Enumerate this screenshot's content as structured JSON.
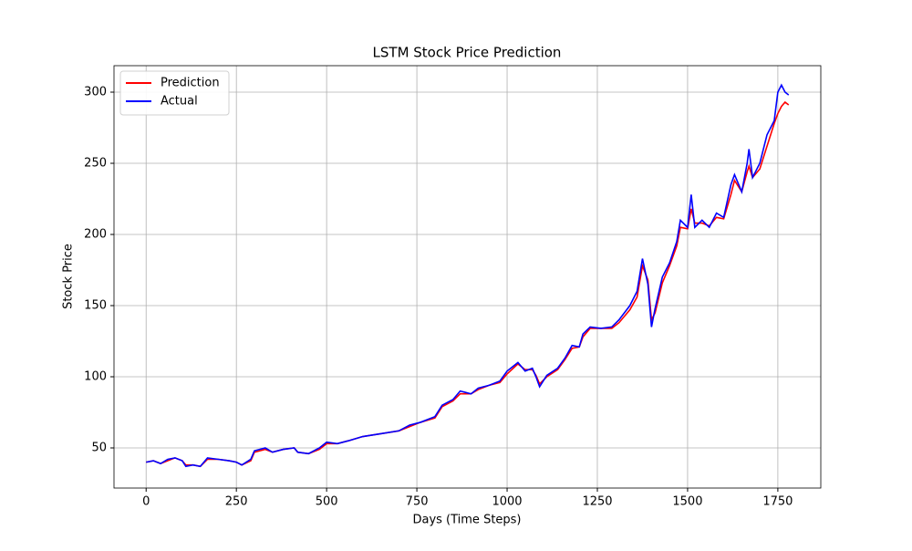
{
  "chart_data": {
    "type": "line",
    "title": "LSTM Stock Price Prediction",
    "x_label": "Days (Time Steps)",
    "y_label": "Stock Price",
    "x": [
      0,
      20,
      40,
      60,
      80,
      100,
      110,
      130,
      150,
      170,
      200,
      230,
      250,
      265,
      290,
      300,
      330,
      350,
      380,
      410,
      420,
      450,
      480,
      500,
      530,
      560,
      600,
      650,
      700,
      730,
      760,
      800,
      820,
      850,
      870,
      900,
      920,
      950,
      980,
      1000,
      1030,
      1050,
      1070,
      1080,
      1090,
      1110,
      1140,
      1160,
      1180,
      1200,
      1210,
      1230,
      1260,
      1290,
      1310,
      1340,
      1360,
      1375,
      1390,
      1400,
      1410,
      1430,
      1450,
      1470,
      1480,
      1500,
      1510,
      1520,
      1540,
      1560,
      1580,
      1600,
      1620,
      1630,
      1650,
      1665,
      1670,
      1680,
      1700,
      1720,
      1740,
      1750,
      1760,
      1770,
      1780
    ],
    "series": [
      {
        "name": "Prediction",
        "color": "#ff0000",
        "values": [
          40,
          41,
          39,
          41,
          43,
          41,
          38,
          38,
          37,
          42,
          42,
          41,
          40,
          38,
          41,
          47,
          49,
          47,
          49,
          50,
          47,
          46,
          49,
          53,
          53,
          55,
          58,
          60,
          62,
          65,
          68,
          71,
          79,
          83,
          88,
          88,
          91,
          94,
          96,
          102,
          109,
          105,
          105,
          101,
          95,
          100,
          105,
          112,
          120,
          121,
          128,
          134,
          134,
          134,
          138,
          147,
          156,
          178,
          168,
          140,
          145,
          166,
          178,
          192,
          205,
          204,
          218,
          208,
          208,
          206,
          212,
          211,
          228,
          238,
          230,
          244,
          248,
          240,
          246,
          262,
          278,
          285,
          290,
          293,
          291
        ]
      },
      {
        "name": "Actual",
        "color": "#0000ff",
        "values": [
          40,
          41,
          39,
          42,
          43,
          41,
          37,
          38,
          37,
          43,
          42,
          41,
          40,
          38,
          42,
          48,
          50,
          47,
          49,
          50,
          47,
          46,
          50,
          54,
          53,
          55,
          58,
          60,
          62,
          66,
          68,
          72,
          80,
          84,
          90,
          88,
          92,
          94,
          97,
          104,
          110,
          104,
          106,
          100,
          93,
          101,
          106,
          113,
          122,
          121,
          130,
          135,
          134,
          135,
          140,
          150,
          160,
          183,
          165,
          135,
          148,
          170,
          180,
          195,
          210,
          205,
          228,
          205,
          210,
          205,
          215,
          212,
          235,
          242,
          230,
          250,
          260,
          240,
          250,
          270,
          280,
          300,
          305,
          300,
          298
        ]
      }
    ],
    "xlim": [
      -89,
      1869
    ],
    "ylim": [
      21.8,
      318.6
    ],
    "xticks": [
      0,
      250,
      500,
      750,
      1000,
      1250,
      1500,
      1750
    ],
    "yticks": [
      50,
      100,
      150,
      200,
      250,
      300
    ],
    "grid": true,
    "legend": "upper left"
  }
}
